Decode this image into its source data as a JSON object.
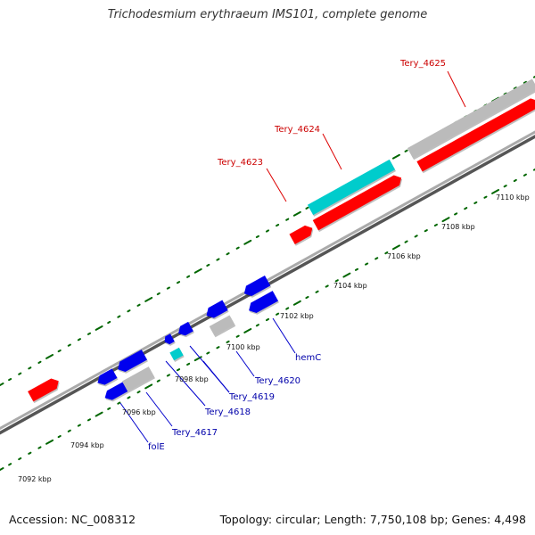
{
  "title": "Trichodesmium erythraeum IMS101, complete genome",
  "footer": {
    "accession": "Accession: NC_008312",
    "topology": "Topology: circular; Length: 7,750,108 bp; Genes: 4,498"
  },
  "colors": {
    "forward": "#ff0000",
    "reverse": "#0000ee",
    "rna": "#00cccc",
    "other": "#bbbbbb",
    "backbone": "#888888",
    "tick": "#006600",
    "forward_label": "#cc0000",
    "reverse_label": "#0000aa"
  },
  "scale": {
    "unit": "kbp",
    "labels": [
      "7092 kbp",
      "7094 kbp",
      "7096 kbp",
      "7098 kbp",
      "7100 kbp",
      "7102 kbp",
      "7104 kbp",
      "7106 kbp",
      "7108 kbp",
      "7110 kbp"
    ]
  },
  "gene_labels": {
    "forward": [
      "Tery_4623",
      "Tery_4624",
      "Tery_4625"
    ],
    "reverse": [
      "folE",
      "Tery_4617",
      "Tery_4618",
      "Tery_4619",
      "Tery_4620",
      "hemC"
    ]
  }
}
